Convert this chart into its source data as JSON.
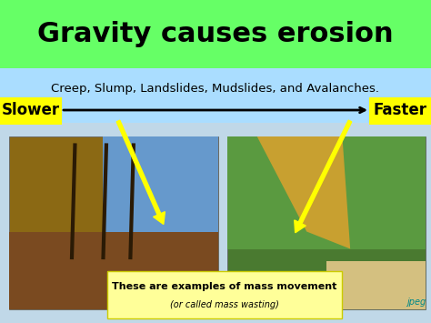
{
  "title": "Gravity causes erosion",
  "title_bg_color": "#66ff66",
  "subtitle": "Creep, Slump, Landslides, Mudslides, and Avalanches.",
  "subtitle_bg_color": "#aaddff",
  "slower_label": "Slower",
  "faster_label": "Faster",
  "label_bg_color": "#ffff00",
  "bottom_text_line1": "These are examples of mass movement",
  "bottom_text_line2": "(or called mass wasting)",
  "bottom_text_bg": "#ffff99",
  "slide_bg": "#aaddff",
  "watermark": "jpeg"
}
